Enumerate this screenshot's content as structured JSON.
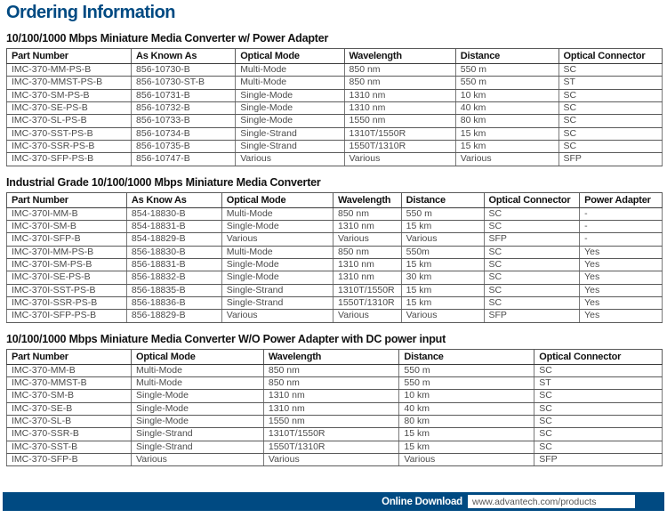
{
  "page": {
    "title": "Ordering Information"
  },
  "sections": [
    {
      "heading": "10/100/1000 Mbps Miniature Media Converter w/ Power Adapter",
      "columns": [
        "Part Number",
        "As Known As",
        "Optical Mode",
        "Wavelength",
        "Distance",
        "Optical Connector"
      ],
      "rows": [
        [
          "IMC-370-MM-PS-B",
          "856-10730-B",
          "Multi-Mode",
          "850 nm",
          "550 m",
          "SC"
        ],
        [
          "IMC-370-MMST-PS-B",
          "856-10730-ST-B",
          "Multi-Mode",
          "850 nm",
          "550 m",
          "ST"
        ],
        [
          "IMC-370-SM-PS-B",
          "856-10731-B",
          "Single-Mode",
          "1310 nm",
          "10 km",
          "SC"
        ],
        [
          "IMC-370-SE-PS-B",
          "856-10732-B",
          "Single-Mode",
          "1310 nm",
          "40 km",
          "SC"
        ],
        [
          "IMC-370-SL-PS-B",
          "856-10733-B",
          "Single-Mode",
          "1550 nm",
          "80 km",
          "SC"
        ],
        [
          "IMC-370-SST-PS-B",
          "856-10734-B",
          "Single-Strand",
          "1310T/1550R",
          "15 km",
          "SC"
        ],
        [
          "IMC-370-SSR-PS-B",
          "856-10735-B",
          "Single-Strand",
          "1550T/1310R",
          "15 km",
          "SC"
        ],
        [
          "IMC-370-SFP-PS-B",
          "856-10747-B",
          "Various",
          "Various",
          "Various",
          "SFP"
        ]
      ]
    },
    {
      "heading": "Industrial Grade 10/100/1000 Mbps Miniature Media Converter",
      "columns": [
        "Part Number",
        "As Know As",
        "Optical Mode",
        "Wavelength",
        "Distance",
        "Optical Connector",
        "Power Adapter"
      ],
      "rows": [
        [
          "IMC-370I-MM-B",
          "854-18830-B",
          "Multi-Mode",
          "850 nm",
          "550 m",
          "SC",
          "-"
        ],
        [
          "IMC-370I-SM-B",
          "854-18831-B",
          "Single-Mode",
          "1310 nm",
          "15 km",
          "SC",
          "-"
        ],
        [
          "IMC-370I-SFP-B",
          "854-18829-B",
          "Various",
          "Various",
          "Various",
          "SFP",
          "-"
        ],
        [
          "IMC-370I-MM-PS-B",
          "856-18830-B",
          "Multi-Mode",
          "850 nm",
          "550m",
          "SC",
          "Yes"
        ],
        [
          "IMC-370I-SM-PS-B",
          "856-18831-B",
          "Single-Mode",
          "1310 nm",
          "15 km",
          "SC",
          "Yes"
        ],
        [
          "IMC-370I-SE-PS-B",
          "856-18832-B",
          "Single-Mode",
          "1310 nm",
          "30 km",
          "SC",
          "Yes"
        ],
        [
          "IMC-370I-SST-PS-B",
          "856-18835-B",
          "Single-Strand",
          "1310T/1550R",
          "15 km",
          "SC",
          "Yes"
        ],
        [
          "IMC-370I-SSR-PS-B",
          "856-18836-B",
          "Single-Strand",
          "1550T/1310R",
          "15 km",
          "SC",
          "Yes"
        ],
        [
          "IMC-370I-SFP-PS-B",
          "856-18829-B",
          "Various",
          "Various",
          "Various",
          "SFP",
          "Yes"
        ]
      ]
    },
    {
      "heading": "10/100/1000 Mbps Miniature Media Converter W/O Power Adapter with DC power input",
      "columns": [
        "Part Number",
        "Optical Mode",
        "Wavelength",
        "Distance",
        "Optical Connector"
      ],
      "rows": [
        [
          "IMC-370-MM-B",
          "Multi-Mode",
          "850 nm",
          "550 m",
          "SC"
        ],
        [
          "IMC-370-MMST-B",
          "Multi-Mode",
          "850 nm",
          "550 m",
          "ST"
        ],
        [
          "IMC-370-SM-B",
          "Single-Mode",
          "1310 nm",
          "10 km",
          "SC"
        ],
        [
          "IMC-370-SE-B",
          "Single-Mode",
          "1310 nm",
          "40 km",
          "SC"
        ],
        [
          "IMC-370-SL-B",
          "Single-Mode",
          "1550 nm",
          "80 km",
          "SC"
        ],
        [
          "IMC-370-SSR-B",
          "Single-Strand",
          "1310T/1550R",
          "15 km",
          "SC"
        ],
        [
          "IMC-370-SST-B",
          "Single-Strand",
          "1550T/1310R",
          "15 km",
          "SC"
        ],
        [
          "IMC-370-SFP-B",
          "Various",
          "Various",
          "Various",
          "SFP"
        ]
      ]
    }
  ],
  "footer": {
    "label": "Online Download",
    "url": "www.advantech.com/products"
  },
  "colors": {
    "accent_blue": "#004a82",
    "heading_text": "#111111",
    "cell_text": "#4b4b4b",
    "table_border": "#5a5a5a"
  }
}
